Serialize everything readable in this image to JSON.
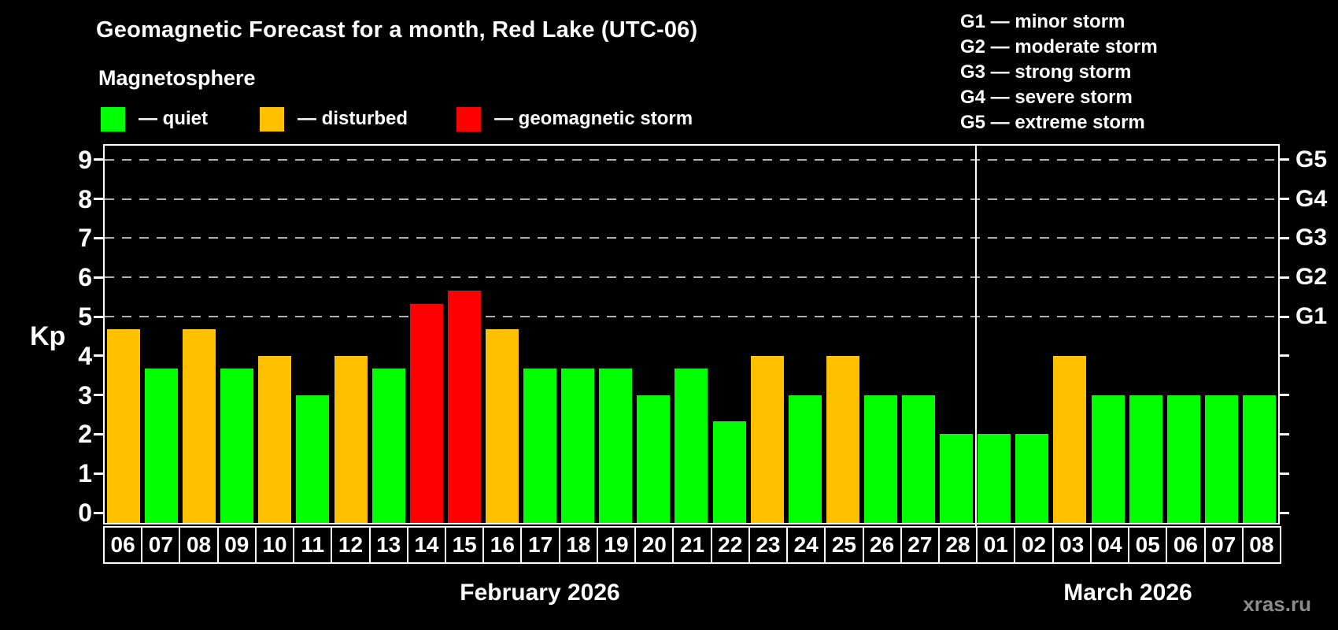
{
  "header": {
    "title": "Geomagnetic Forecast for a month, Red Lake (UTC-06)",
    "subtitle": "Magnetosphere"
  },
  "legend": {
    "items": [
      {
        "key": "quiet",
        "label": "— quiet",
        "color": "#00ff00"
      },
      {
        "key": "disturbed",
        "label": "— disturbed",
        "color": "#ffc000"
      },
      {
        "key": "storm",
        "label": "— geomagnetic storm",
        "color": "#ff0000"
      }
    ]
  },
  "storm_legend": {
    "lines": [
      "G1 — minor storm",
      "G2 — moderate storm",
      "G3 — strong storm",
      "G4 — severe storm",
      "G5 — extreme storm"
    ]
  },
  "watermark": "xras.ru",
  "chart_data": {
    "type": "bar",
    "title": "Geomagnetic Forecast for a month, Red Lake (UTC-06)",
    "ylabel": "Kp",
    "ylim": [
      0,
      9
    ],
    "y_ticks": [
      0,
      1,
      2,
      3,
      4,
      5,
      6,
      7,
      8,
      9
    ],
    "grid_levels": [
      5,
      6,
      7,
      8,
      9
    ],
    "grid_style": "dashed",
    "legend_position": "top",
    "right_axis": {
      "labels": [
        "G1",
        "G2",
        "G3",
        "G4",
        "G5"
      ],
      "kp_levels": [
        5,
        6,
        7,
        8,
        9
      ]
    },
    "month_labels": [
      "February 2026",
      "March 2026"
    ],
    "month_split_after": 23,
    "status_colors": {
      "quiet": "#00ff00",
      "disturbed": "#ffc000",
      "storm": "#ff0000"
    },
    "bars": [
      {
        "day": "06",
        "kp": 4.67,
        "status": "disturbed"
      },
      {
        "day": "07",
        "kp": 3.67,
        "status": "quiet"
      },
      {
        "day": "08",
        "kp": 4.67,
        "status": "disturbed"
      },
      {
        "day": "09",
        "kp": 3.67,
        "status": "quiet"
      },
      {
        "day": "10",
        "kp": 4.0,
        "status": "disturbed"
      },
      {
        "day": "11",
        "kp": 3.0,
        "status": "quiet"
      },
      {
        "day": "12",
        "kp": 4.0,
        "status": "disturbed"
      },
      {
        "day": "13",
        "kp": 3.67,
        "status": "quiet"
      },
      {
        "day": "14",
        "kp": 5.33,
        "status": "storm"
      },
      {
        "day": "15",
        "kp": 5.67,
        "status": "storm"
      },
      {
        "day": "16",
        "kp": 4.67,
        "status": "disturbed"
      },
      {
        "day": "17",
        "kp": 3.67,
        "status": "quiet"
      },
      {
        "day": "18",
        "kp": 3.67,
        "status": "quiet"
      },
      {
        "day": "19",
        "kp": 3.67,
        "status": "quiet"
      },
      {
        "day": "20",
        "kp": 3.0,
        "status": "quiet"
      },
      {
        "day": "21",
        "kp": 3.67,
        "status": "quiet"
      },
      {
        "day": "22",
        "kp": 2.33,
        "status": "quiet"
      },
      {
        "day": "23",
        "kp": 4.0,
        "status": "disturbed"
      },
      {
        "day": "24",
        "kp": 3.0,
        "status": "quiet"
      },
      {
        "day": "25",
        "kp": 4.0,
        "status": "disturbed"
      },
      {
        "day": "26",
        "kp": 3.0,
        "status": "quiet"
      },
      {
        "day": "27",
        "kp": 3.0,
        "status": "quiet"
      },
      {
        "day": "28",
        "kp": 2.0,
        "status": "quiet"
      },
      {
        "day": "01",
        "kp": 2.0,
        "status": "quiet"
      },
      {
        "day": "02",
        "kp": 2.0,
        "status": "quiet"
      },
      {
        "day": "03",
        "kp": 4.0,
        "status": "disturbed"
      },
      {
        "day": "04",
        "kp": 3.0,
        "status": "quiet"
      },
      {
        "day": "05",
        "kp": 3.0,
        "status": "quiet"
      },
      {
        "day": "06",
        "kp": 3.0,
        "status": "quiet"
      },
      {
        "day": "07",
        "kp": 3.0,
        "status": "quiet"
      },
      {
        "day": "08",
        "kp": 3.0,
        "status": "quiet"
      }
    ]
  }
}
